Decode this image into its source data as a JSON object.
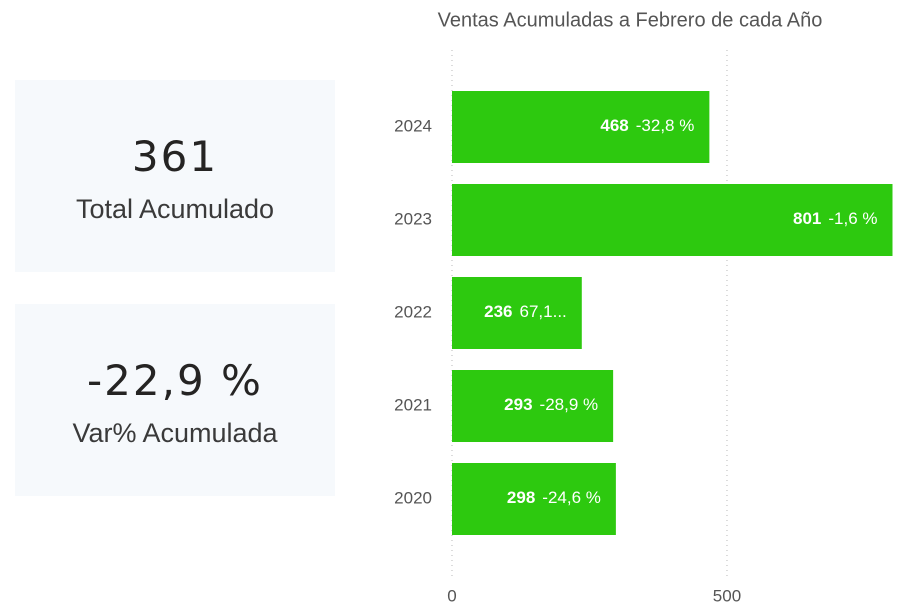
{
  "cards": [
    {
      "value": "361",
      "label": "Total Acumulado"
    },
    {
      "value": "-22,9 %",
      "label": "Var% Acumulada"
    }
  ],
  "chart_data": {
    "type": "hbar",
    "title": "Ventas Acumuladas a Febrero de cada Año",
    "categories": [
      "2024",
      "2023",
      "2022",
      "2021",
      "2020"
    ],
    "values": [
      468,
      801,
      236,
      293,
      298
    ],
    "variation_labels": [
      "-32,8 %",
      "-1,6 %",
      "67,1...",
      "-28,9 %",
      "-24,6 %"
    ],
    "color": "#2dc90f",
    "xlim": [
      0,
      801
    ],
    "xticks": [
      0,
      500
    ],
    "grid": true
  }
}
